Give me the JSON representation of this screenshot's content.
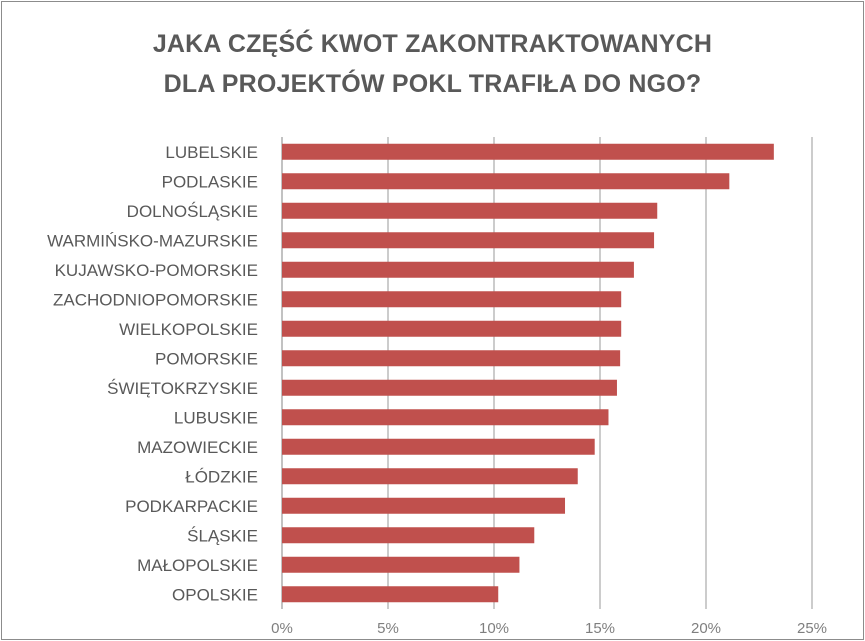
{
  "chart_data": {
    "type": "bar",
    "orientation": "horizontal",
    "title_lines": [
      "JAKA CZĘŚĆ KWOT ZAKONTRAKTOWANYCH",
      "DLA PROJEKTÓW POKL TRAFIŁA DO NGO?"
    ],
    "categories": [
      "LUBELSKIE",
      "PODLASKIE",
      "DOLNOŚLĄSKIE",
      "WARMIŃSKO-MAZURSKIE",
      "KUJAWSKO-POMORSKIE",
      "ZACHODNIOPOMORSKIE",
      "WIELKOPOLSKIE",
      "POMORSKIE",
      "ŚWIĘTOKRZYSKIE",
      "LUBUSKIE",
      "MAZOWIECKIE",
      "ŁÓDZKIE",
      "PODKARPACKIE",
      "ŚLĄSKIE",
      "MAŁOPOLSKIE",
      "OPOLSKIE"
    ],
    "values": [
      23.2,
      21.1,
      17.7,
      17.55,
      16.6,
      16.0,
      16.0,
      15.95,
      15.8,
      15.4,
      14.75,
      13.95,
      13.35,
      11.9,
      11.2,
      10.2
    ],
    "unit": "%",
    "xlim": [
      0,
      25
    ],
    "xticks": [
      0,
      5,
      10,
      15,
      20,
      25
    ],
    "xtick_labels": [
      "0%",
      "5%",
      "10%",
      "15%",
      "20%",
      "25%"
    ],
    "xlabel": "",
    "ylabel": "",
    "grid": "vertical",
    "legend": "none",
    "bar_color": "#c0504d"
  }
}
